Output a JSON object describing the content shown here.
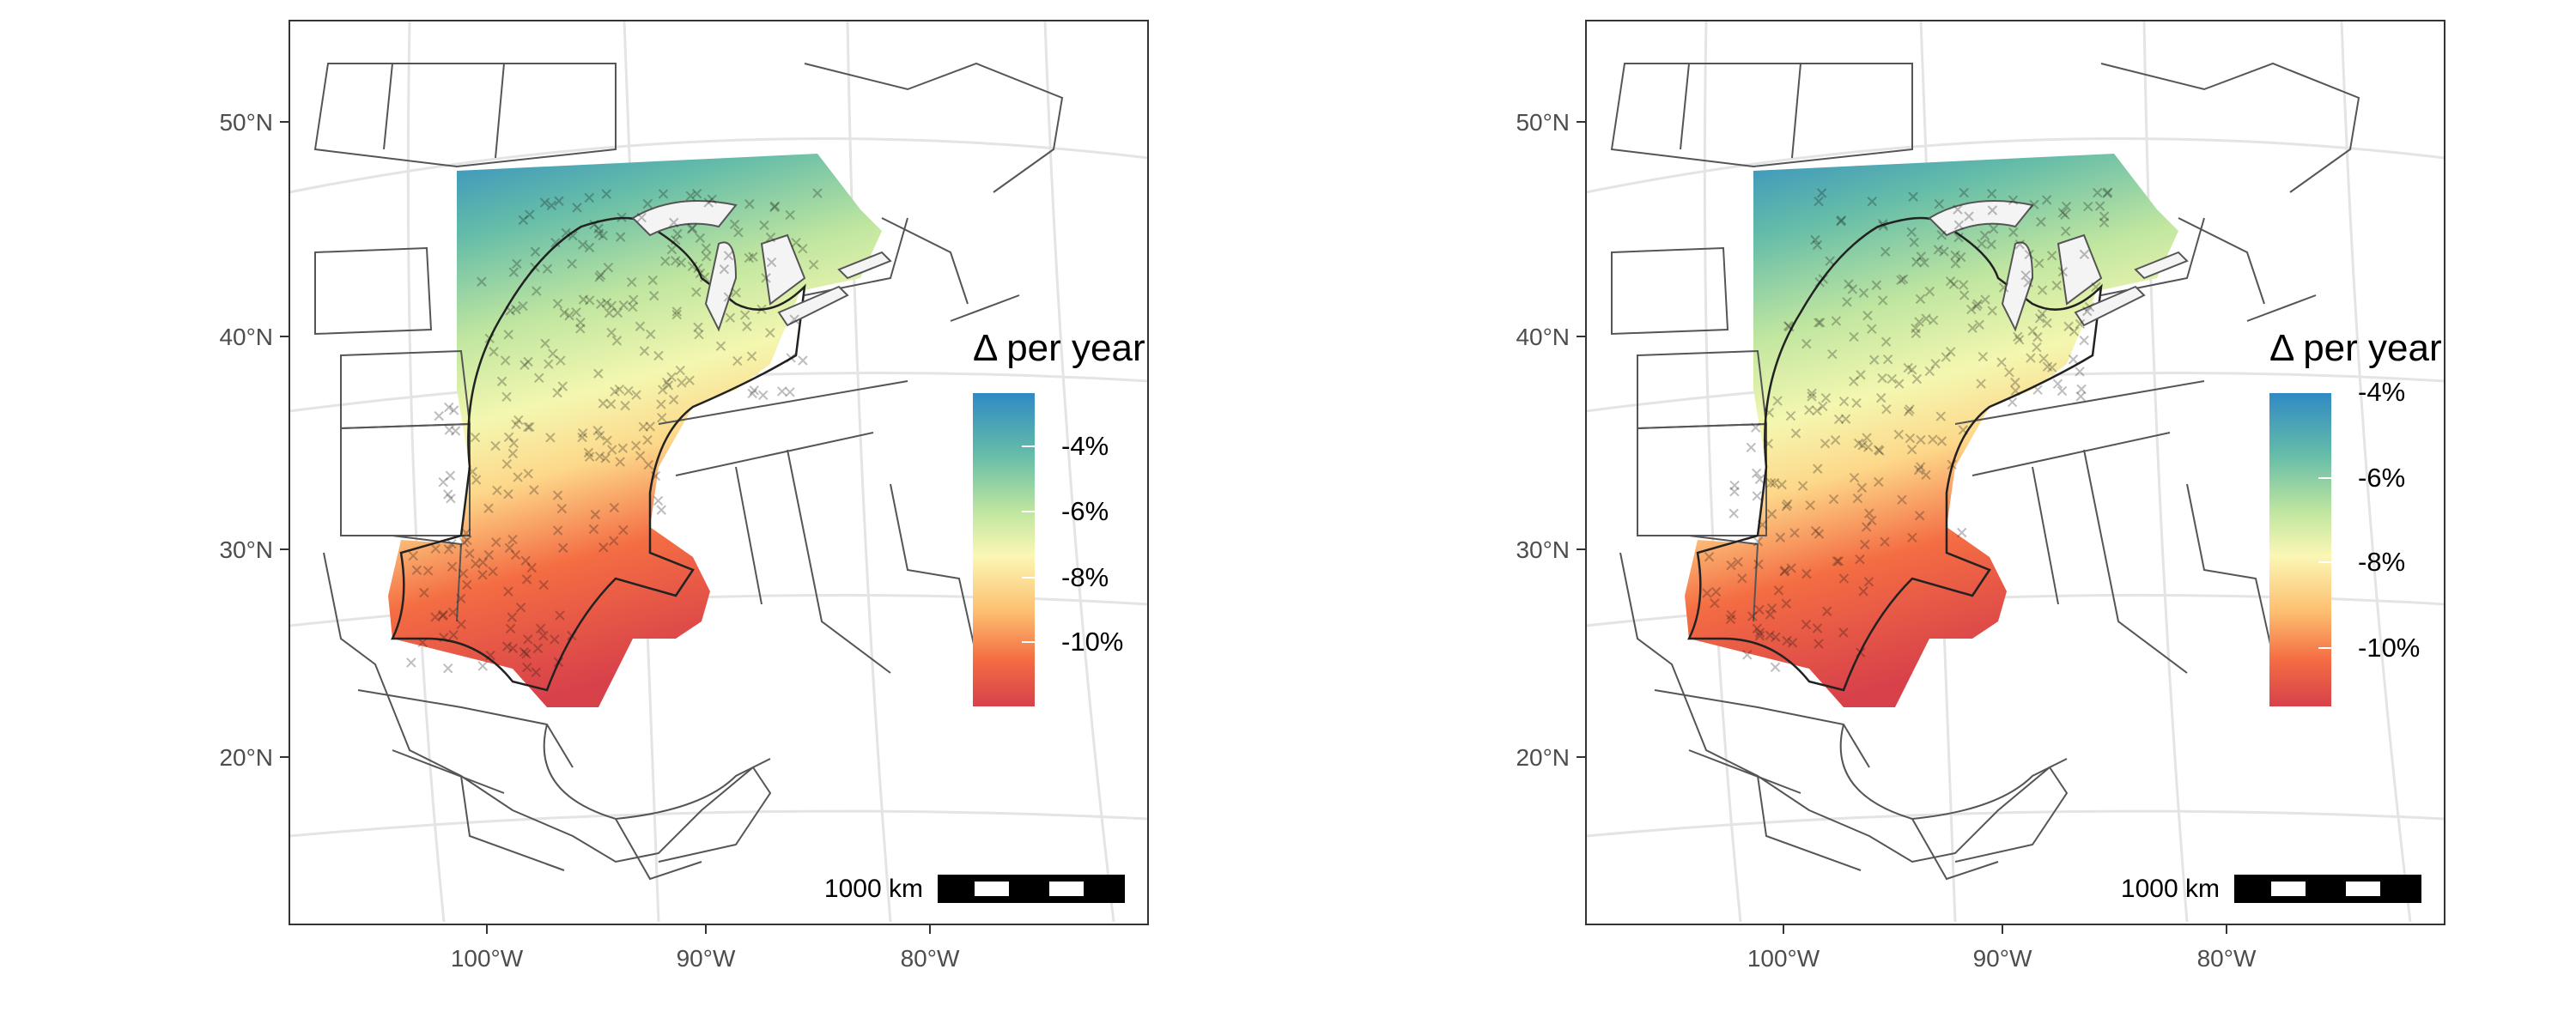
{
  "panels": [
    {
      "lat_ticks": [
        "50°N",
        "40°N",
        "30°N",
        "20°N"
      ],
      "lon_ticks": [
        "100°W",
        "90°W",
        "80°W"
      ],
      "legend": {
        "title": "Δ per year",
        "labels": [
          "-4%",
          "-6%",
          "-8%",
          "-10%"
        ],
        "colors": [
          "#2f8ac4",
          "#66bda8",
          "#c0e6a0",
          "#fbf7b5",
          "#fdbe6f",
          "#f46d43",
          "#d8414a"
        ]
      },
      "scalebar": {
        "label": "1000 km"
      }
    },
    {
      "lat_ticks": [
        "50°N",
        "40°N",
        "30°N",
        "20°N"
      ],
      "lon_ticks": [
        "100°W",
        "90°W",
        "80°W"
      ],
      "legend": {
        "title": "Δ per year",
        "labels": [
          "-4%",
          "-6%",
          "-8%",
          "-10%"
        ],
        "colors": [
          "#2f8ac4",
          "#66bda8",
          "#c0e6a0",
          "#fbf7b5",
          "#fdbe6f",
          "#f46d43",
          "#d8414a"
        ]
      },
      "scalebar": {
        "label": "1000 km"
      }
    }
  ]
}
